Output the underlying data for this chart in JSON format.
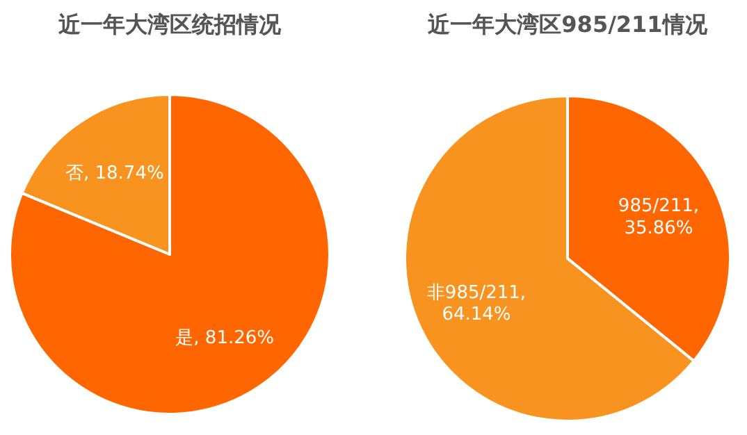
{
  "chart_data": [
    {
      "type": "pie",
      "title": "近一年大湾区统招情况",
      "categories": [
        "是",
        "否"
      ],
      "values": [
        81.26,
        18.74
      ],
      "colors": [
        "#ff6600",
        "#f7931e"
      ],
      "value_labels": [
        ", 81.26%",
        ", 18.74%"
      ]
    },
    {
      "type": "pie",
      "title": "近一年大湾区985/211情况",
      "categories": [
        "985/211",
        "非985/211"
      ],
      "values": [
        35.86,
        64.14
      ],
      "colors": [
        "#ff6600",
        "#f7931e"
      ],
      "value_labels": [
        ", 35.86%",
        ", 64.14%"
      ]
    }
  ]
}
